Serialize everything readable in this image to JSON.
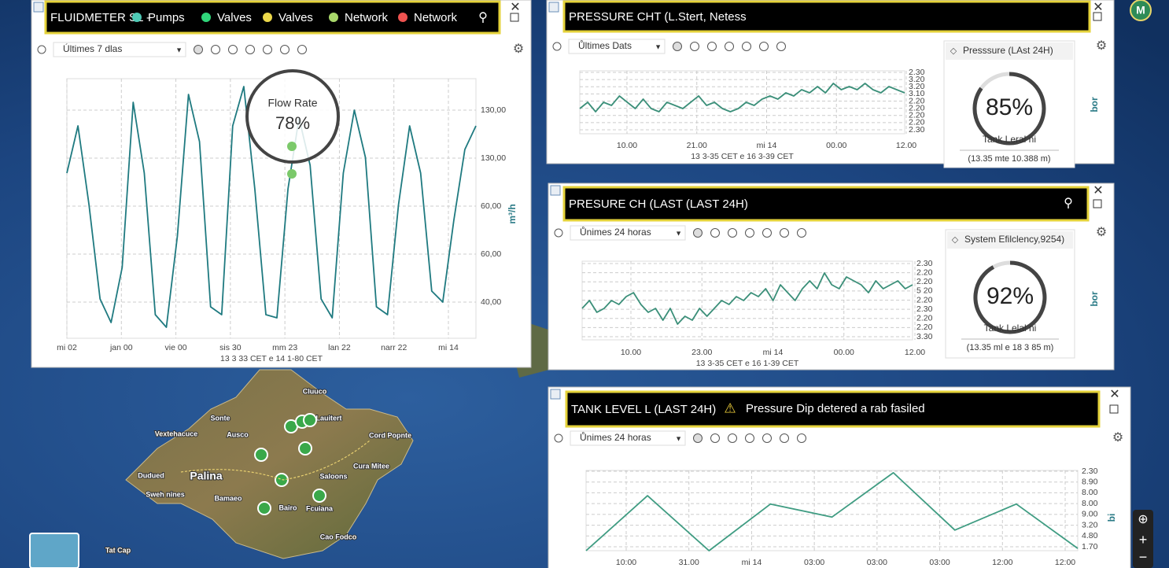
{
  "header": {
    "avatar": "M"
  },
  "map": {
    "places": [
      "Palina",
      "Sonte",
      "Vextehacuce",
      "Ausco",
      "Cluuco",
      "Lauitert",
      "Cord Popnte",
      "Cura Mitee",
      "Dudued",
      "Saloons",
      "Sweh nines",
      "Bamaeo",
      "Bairo",
      "Fcuiana",
      "Cao Fodco",
      "Tat Cap"
    ]
  },
  "flow_panel": {
    "title": "FLUIDMETER SL -",
    "legend": [
      {
        "name": "Pumps",
        "color": "#4fc9b5"
      },
      {
        "name": "Valves",
        "color": "#2fd67a"
      },
      {
        "name": "Valves",
        "color": "#ecd84a"
      },
      {
        "name": "Network",
        "color": "#a9d86b"
      },
      {
        "name": "Network",
        "color": "#ef5350"
      }
    ],
    "range_select": "Últimes 7 dlas",
    "chart": {
      "type": "line",
      "color": "#1f7a80",
      "values": [
        120,
        150,
        100,
        40,
        25,
        60,
        165,
        120,
        30,
        22,
        80,
        170,
        140,
        35,
        30,
        150,
        175,
        110,
        30,
        28,
        110,
        155,
        125,
        40,
        28,
        120,
        160,
        130,
        35,
        30,
        100,
        150,
        120,
        45,
        38,
        90,
        135,
        150
      ],
      "ylim": [
        15,
        180
      ],
      "y_labels": [
        "130,00",
        "130,00",
        "60,00",
        "60,00",
        "40,00"
      ],
      "y_axis_label": "m³/h",
      "x_labels": [
        "mi 02",
        "jan 00",
        "vie 00",
        "sis 30",
        "mm 23",
        "lan 22",
        "narr 22",
        "mi 14"
      ],
      "footer": "13 3 33 CET e 14 1-80 CET"
    },
    "annotation": {
      "label": "Flow Rate",
      "value": 78,
      "value_label": "78%"
    }
  },
  "pressure_panel": {
    "title": "PRESSURE CHT (L.Stert, Netess",
    "range_select": "Ůltimes Dats",
    "chart": {
      "type": "line",
      "color": "#3b8f79",
      "values": [
        4,
        5,
        3.5,
        5,
        4.5,
        6,
        5,
        4,
        5.5,
        4,
        3.5,
        5,
        4.5,
        4,
        5,
        6,
        4.5,
        5,
        4,
        3.5,
        4,
        5,
        4.5,
        5.5,
        6,
        5.5,
        6.5,
        6,
        7,
        6.5,
        7.5,
        6.5,
        8,
        7,
        7.5,
        7,
        8,
        7,
        6.5,
        7.5,
        7,
        6.5
      ],
      "ylim": [
        0,
        10
      ],
      "y_labels": [
        "2.30",
        "3.20",
        "3.20",
        "3.10",
        "2.20",
        "2.20",
        "2.20",
        "2.20",
        "2.30"
      ],
      "x_labels": [
        "10.00",
        "21.00",
        "mi 14",
        "00.00",
        "12.00"
      ],
      "footer": "13 3-35 CET e 16 3-39 CET"
    },
    "gauge": {
      "title": "Presssure (LAst 24H)",
      "value": 85,
      "value_label": "85%",
      "label": "Tank Leral ni",
      "range": "(13.35 mte 10.388 m)"
    },
    "unit": "bor"
  },
  "efficiency_panel": {
    "title": "PRESURE CH (LAST (LAST 24H)",
    "range_select": "Ůnimes 24 horas",
    "chart": {
      "type": "line",
      "color": "#3b8f79",
      "values": [
        4,
        5,
        3.5,
        4,
        5,
        4.5,
        5.5,
        6,
        4.5,
        3.5,
        4,
        2.5,
        4,
        2,
        3,
        2.5,
        4,
        3,
        4,
        5,
        4.5,
        5.5,
        5,
        6,
        5.5,
        6.5,
        5,
        7,
        6,
        5,
        6.5,
        7.5,
        6.5,
        8.5,
        7,
        6.5,
        8,
        7.5,
        7,
        6,
        7.5,
        6.5,
        7,
        7.5,
        6.5,
        7
      ],
      "ylim": [
        0,
        10
      ],
      "y_labels": [
        "2.30",
        "2.20",
        "2.20",
        "5 20",
        "2.20",
        "2.30",
        "2.20",
        "2.20",
        "3.30"
      ],
      "x_labels": [
        "10.00",
        "23.00",
        "mi 14",
        "00.00",
        "12.00"
      ],
      "footer": "13 3-35 CET e 16 1-39 CET"
    },
    "gauge": {
      "title": "System Efilclency,9254)",
      "value": 92,
      "value_label": "92%",
      "label": "Tank Lelal ni",
      "range": "(13.35 ml e 18 3 85 m)"
    },
    "unit": "bor"
  },
  "tank_panel": {
    "title": "TANK LEVEL L (LAST 24H)",
    "alert": "Pressure Dip detered a rab fasiled",
    "range_select": "Ůnimes 24 horas",
    "chart": {
      "type": "line",
      "color": "#3f9c82",
      "values": [
        0,
        7.2,
        0,
        6.1,
        4.4,
        10.2,
        2.7,
        6.1,
        0.3
      ],
      "ylim": [
        0,
        10.5
      ],
      "y_labels": [
        "2.30",
        "8.90",
        "8.00",
        "8.00",
        "9.00",
        "3.20",
        "4.80",
        "1.70"
      ],
      "x_labels": [
        "10:00",
        "31.00",
        "mi 14",
        "03:00",
        "03:00",
        "03:00",
        "12:00",
        "12:00"
      ]
    },
    "unit": "bi"
  }
}
